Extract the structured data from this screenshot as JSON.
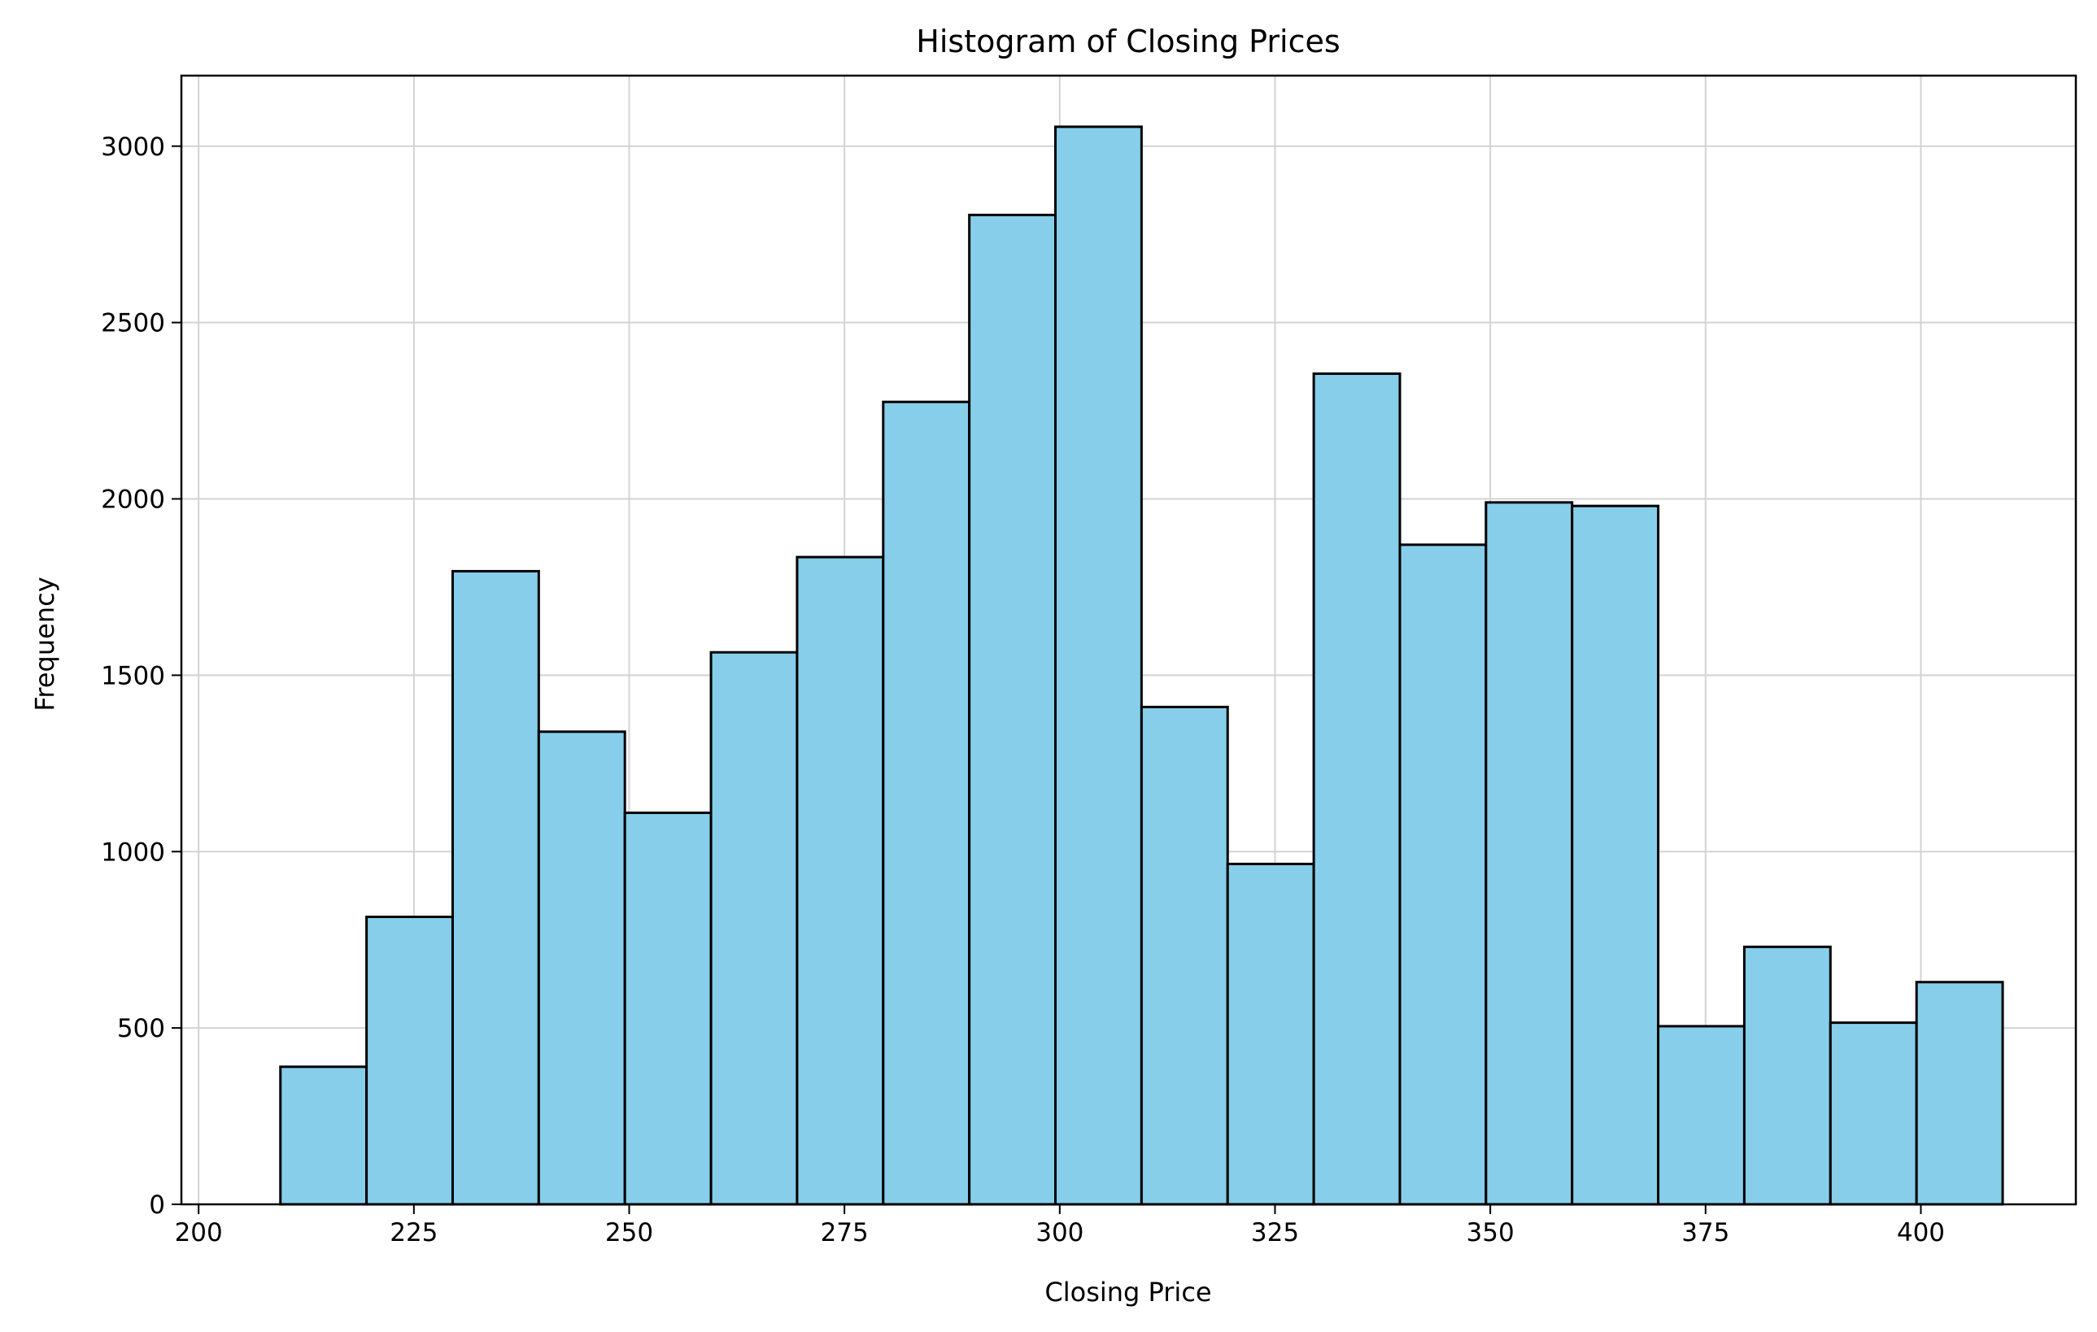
{
  "chart_data": {
    "type": "bar",
    "title": "Histogram of Closing Prices",
    "xlabel": "Closing Price",
    "ylabel": "Frequency",
    "xlim": [
      198,
      418
    ],
    "ylim": [
      0,
      3200
    ],
    "xticks": [
      200,
      225,
      250,
      275,
      300,
      325,
      350,
      375,
      400
    ],
    "yticks": [
      0,
      500,
      1000,
      1500,
      2000,
      2500,
      3000
    ],
    "grid": true,
    "bar_color": "#87ceeb",
    "edge_color": "#000000",
    "bins": [
      {
        "start": 209.5,
        "end": 219.5,
        "count": 390
      },
      {
        "start": 219.5,
        "end": 229.5,
        "count": 815
      },
      {
        "start": 229.5,
        "end": 239.5,
        "count": 1795
      },
      {
        "start": 239.5,
        "end": 249.5,
        "count": 1340
      },
      {
        "start": 249.5,
        "end": 259.5,
        "count": 1110
      },
      {
        "start": 259.5,
        "end": 269.5,
        "count": 1565
      },
      {
        "start": 269.5,
        "end": 279.5,
        "count": 1835
      },
      {
        "start": 279.5,
        "end": 289.5,
        "count": 2275
      },
      {
        "start": 289.5,
        "end": 299.5,
        "count": 2805
      },
      {
        "start": 299.5,
        "end": 309.5,
        "count": 3055
      },
      {
        "start": 309.5,
        "end": 319.5,
        "count": 1410
      },
      {
        "start": 319.5,
        "end": 329.5,
        "count": 965
      },
      {
        "start": 329.5,
        "end": 339.5,
        "count": 2355
      },
      {
        "start": 339.5,
        "end": 349.5,
        "count": 1870
      },
      {
        "start": 349.5,
        "end": 359.5,
        "count": 1990
      },
      {
        "start": 359.5,
        "end": 369.5,
        "count": 1980
      },
      {
        "start": 369.5,
        "end": 379.5,
        "count": 505
      },
      {
        "start": 379.5,
        "end": 389.5,
        "count": 730
      },
      {
        "start": 389.5,
        "end": 399.5,
        "count": 515
      },
      {
        "start": 399.5,
        "end": 409.5,
        "count": 630
      }
    ]
  }
}
